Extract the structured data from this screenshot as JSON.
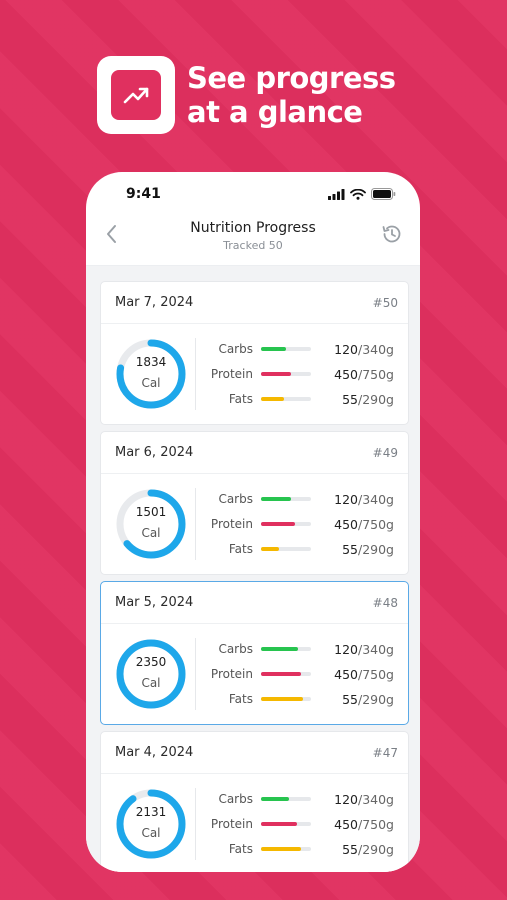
{
  "hero": {
    "title_line1": "See progress",
    "title_line2": "at a glance",
    "icon": "trending-up-icon"
  },
  "status_bar": {
    "time": "9:41"
  },
  "nav": {
    "title": "Nutrition Progress",
    "subtitle": "Tracked 50"
  },
  "colors": {
    "accent": "#e0305f",
    "ring": "#1ea7ea",
    "carbs": "#27c44f",
    "protein": "#e0305f",
    "fats": "#f5b800"
  },
  "entries": [
    {
      "date": "Mar 7, 2024",
      "num": "#50",
      "calories": "1834",
      "unit": "Cal",
      "progress": 0.78,
      "selected": false,
      "macros": [
        {
          "label": "Carbs",
          "value": "120",
          "total": "/340g",
          "fill": 0.5
        },
        {
          "label": "Protein",
          "value": "450",
          "total": "/750g",
          "fill": 0.6
        },
        {
          "label": "Fats",
          "value": "55",
          "total": "/290g",
          "fill": 0.45
        }
      ]
    },
    {
      "date": "Mar 6, 2024",
      "num": "#49",
      "calories": "1501",
      "unit": "Cal",
      "progress": 0.64,
      "selected": false,
      "macros": [
        {
          "label": "Carbs",
          "value": "120",
          "total": "/340g",
          "fill": 0.6
        },
        {
          "label": "Protein",
          "value": "450",
          "total": "/750g",
          "fill": 0.68
        },
        {
          "label": "Fats",
          "value": "55",
          "total": "/290g",
          "fill": 0.35
        }
      ]
    },
    {
      "date": "Mar 5, 2024",
      "num": "#48",
      "calories": "2350",
      "unit": "Cal",
      "progress": 1.0,
      "selected": true,
      "macros": [
        {
          "label": "Carbs",
          "value": "120",
          "total": "/340g",
          "fill": 0.74
        },
        {
          "label": "Protein",
          "value": "450",
          "total": "/750g",
          "fill": 0.8
        },
        {
          "label": "Fats",
          "value": "55",
          "total": "/290g",
          "fill": 0.84
        }
      ]
    },
    {
      "date": "Mar 4, 2024",
      "num": "#47",
      "calories": "2131",
      "unit": "Cal",
      "progress": 0.9,
      "selected": false,
      "macros": [
        {
          "label": "Carbs",
          "value": "120",
          "total": "/340g",
          "fill": 0.55
        },
        {
          "label": "Protein",
          "value": "450",
          "total": "/750g",
          "fill": 0.72
        },
        {
          "label": "Fats",
          "value": "55",
          "total": "/290g",
          "fill": 0.8
        }
      ]
    }
  ]
}
